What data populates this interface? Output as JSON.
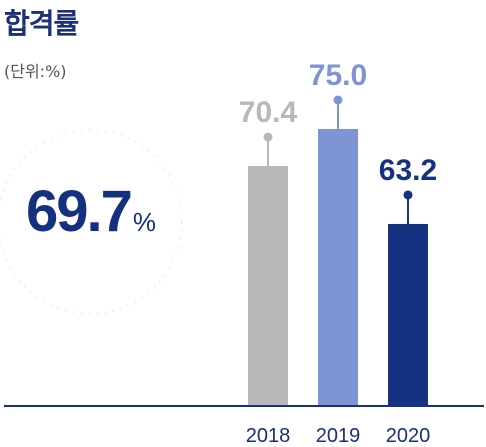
{
  "title": "합격률",
  "unit_label": "(단위:%)",
  "highlight": {
    "value": "69.7",
    "unit": "%"
  },
  "colors": {
    "2018": "#b8b8b8",
    "2019": "#7f94d4",
    "2020": "#143182",
    "axis": "#1b2f7a"
  },
  "chart_data": {
    "type": "bar",
    "categories": [
      "2018",
      "2019",
      "2020"
    ],
    "values": [
      70.4,
      75.0,
      63.2
    ],
    "value_labels": [
      "70.4",
      "75.0",
      "63.2"
    ],
    "grid": false,
    "legend": "none"
  }
}
